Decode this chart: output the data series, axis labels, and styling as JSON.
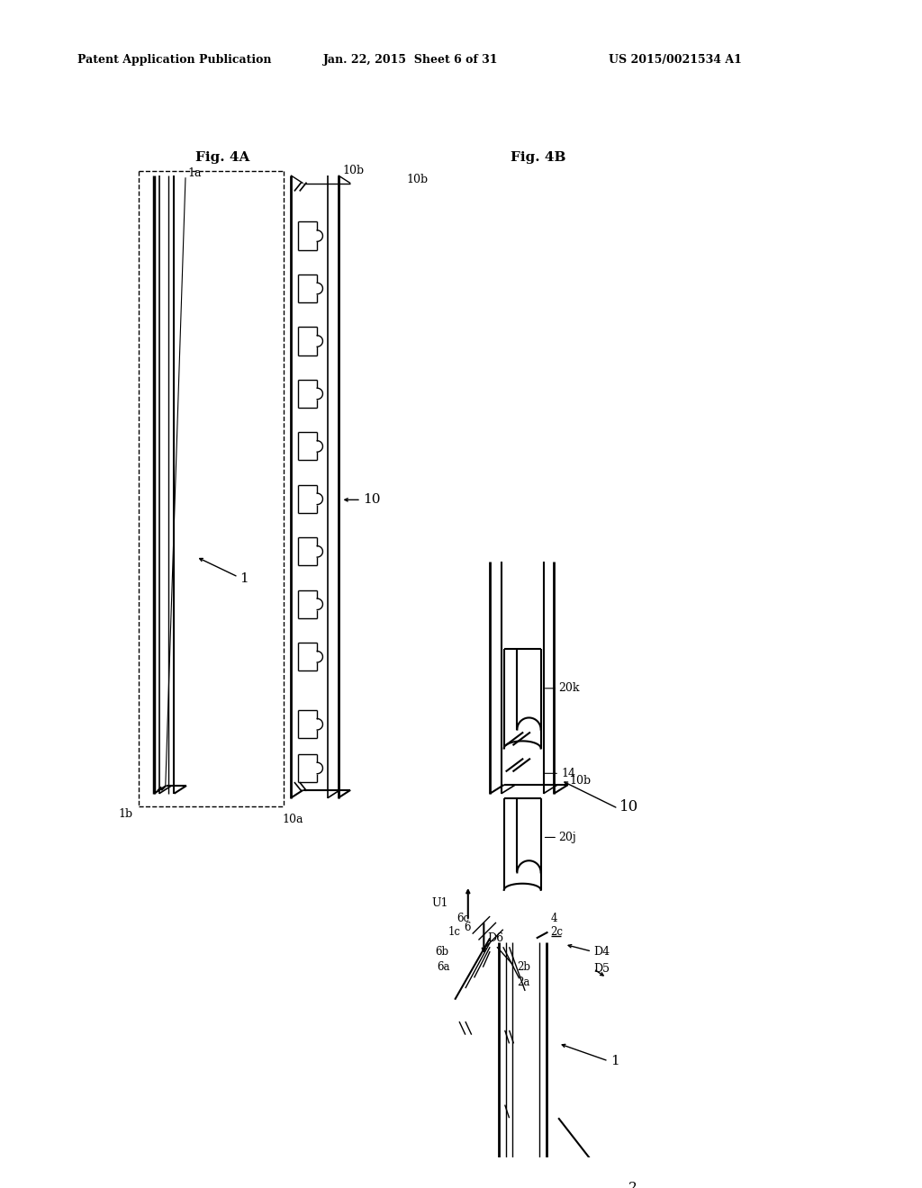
{
  "bg_color": "#ffffff",
  "header_text": "Patent Application Publication",
  "header_date": "Jan. 22, 2015  Sheet 6 of 31",
  "header_patent": "US 2015/0021534 A1"
}
